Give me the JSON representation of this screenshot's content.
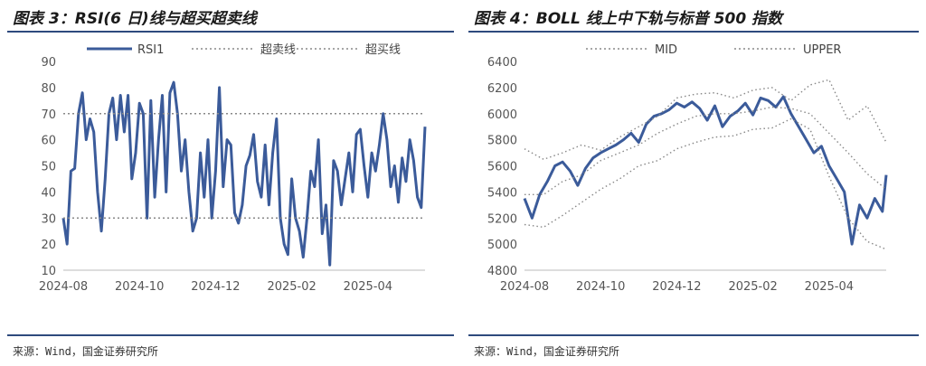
{
  "left": {
    "title": "图表 3：RSI(6 日)线与超买超卖线",
    "source": "来源：Wind，国金证券研究所"
  },
  "right": {
    "title": "图表 4：BOLL 线上中下轨与标普 500 指数",
    "source": "来源：Wind，国金证券研究所"
  },
  "colors": {
    "accent": "#2e4a7d",
    "series": "#3b5b9a",
    "dotted": "#888888",
    "axis": "#bbbbbb"
  },
  "chart_data": [
    {
      "type": "line",
      "title": "",
      "x_ticks": [
        "2024-08",
        "2024-10",
        "2024-12",
        "2025-02",
        "2025-04"
      ],
      "x_range": [
        0,
        9.5
      ],
      "ylim": [
        10,
        90
      ],
      "y_ticks": [
        10,
        20,
        30,
        40,
        50,
        60,
        70,
        80,
        90
      ],
      "legend": [
        "RSI1",
        "超卖线",
        "超买线"
      ],
      "legend_position": "top",
      "series": [
        {
          "name": "RSI1",
          "x": [
            0,
            0.1,
            0.2,
            0.3,
            0.4,
            0.5,
            0.6,
            0.7,
            0.8,
            0.9,
            1.0,
            1.1,
            1.2,
            1.3,
            1.4,
            1.5,
            1.6,
            1.7,
            1.8,
            1.9,
            2.0,
            2.1,
            2.2,
            2.3,
            2.4,
            2.5,
            2.6,
            2.7,
            2.8,
            2.9,
            3.0,
            3.1,
            3.2,
            3.3,
            3.4,
            3.5,
            3.6,
            3.7,
            3.8,
            3.9,
            4.0,
            4.1,
            4.2,
            4.3,
            4.4,
            4.5,
            4.6,
            4.7,
            4.8,
            4.9,
            5.0,
            5.1,
            5.2,
            5.3,
            5.4,
            5.5,
            5.6,
            5.7,
            5.8,
            5.9,
            6.0,
            6.1,
            6.2,
            6.3,
            6.4,
            6.5,
            6.6,
            6.7,
            6.8,
            6.9,
            7.0,
            7.1,
            7.2,
            7.3,
            7.4,
            7.5,
            7.6,
            7.7,
            7.8,
            7.9,
            8.0,
            8.1,
            8.2,
            8.3,
            8.4,
            8.5,
            8.6,
            8.7,
            8.8,
            8.9,
            9.0,
            9.1,
            9.2,
            9.3,
            9.4,
            9.5
          ],
          "y": [
            30,
            20,
            48,
            49,
            70,
            78,
            60,
            68,
            63,
            40,
            25,
            45,
            70,
            76,
            60,
            77,
            63,
            77,
            45,
            55,
            74,
            70,
            30,
            75,
            38,
            60,
            77,
            40,
            78,
            82,
            70,
            48,
            60,
            40,
            25,
            30,
            55,
            38,
            60,
            30,
            48,
            80,
            42,
            60,
            58,
            32,
            28,
            35,
            50,
            54,
            62,
            44,
            38,
            58,
            35,
            55,
            68,
            30,
            20,
            16,
            45,
            30,
            25,
            15,
            30,
            48,
            42,
            60,
            24,
            35,
            12,
            52,
            48,
            35,
            45,
            55,
            40,
            62,
            64,
            50,
            38,
            55,
            48,
            58,
            70,
            60,
            42,
            50,
            36,
            53,
            44,
            60,
            52,
            38,
            34,
            65
          ]
        },
        {
          "name": "超卖线",
          "value": 30
        },
        {
          "name": "超买线",
          "value": 70
        }
      ]
    },
    {
      "type": "line",
      "title": "",
      "x_ticks": [
        "2024-08",
        "2024-10",
        "2024-12",
        "2025-02",
        "2025-04"
      ],
      "x_range": [
        0,
        9.5
      ],
      "ylim": [
        4800,
        6400
      ],
      "y_ticks": [
        4800,
        5000,
        5200,
        5400,
        5600,
        5800,
        6000,
        6200,
        6400
      ],
      "legend": [
        "MID",
        "UPPER"
      ],
      "legend_position": "top",
      "series": [
        {
          "name": "",
          "x": [
            0,
            0.2,
            0.4,
            0.6,
            0.8,
            1.0,
            1.2,
            1.4,
            1.6,
            1.8,
            2.0,
            2.2,
            2.4,
            2.6,
            2.8,
            3.0,
            3.2,
            3.4,
            3.6,
            3.8,
            4.0,
            4.2,
            4.4,
            4.6,
            4.8,
            5.0,
            5.2,
            5.4,
            5.6,
            5.8,
            6.0,
            6.2,
            6.4,
            6.6,
            6.8,
            7.0,
            7.2,
            7.4,
            7.6,
            7.8,
            8.0,
            8.2,
            8.4,
            8.6,
            8.8,
            9.0,
            9.2,
            9.4,
            9.5
          ],
          "y": [
            5350,
            5200,
            5380,
            5480,
            5600,
            5630,
            5560,
            5450,
            5580,
            5660,
            5700,
            5730,
            5760,
            5800,
            5850,
            5780,
            5920,
            5980,
            6000,
            6030,
            6080,
            6050,
            6090,
            6040,
            5950,
            6060,
            5900,
            5980,
            6020,
            6080,
            5990,
            6120,
            6100,
            6050,
            6130,
            6000,
            5900,
            5800,
            5700,
            5750,
            5600,
            5500,
            5400,
            5000,
            5300,
            5200,
            5350,
            5250,
            5530
          ]
        },
        {
          "name": "MID",
          "x": [
            0,
            0.5,
            1.0,
            1.5,
            2.0,
            2.5,
            3.0,
            3.5,
            4.0,
            4.5,
            5.0,
            5.5,
            6.0,
            6.5,
            7.0,
            7.5,
            8.0,
            8.5,
            9.0,
            9.5
          ],
          "y": [
            5380,
            5380,
            5480,
            5530,
            5640,
            5700,
            5760,
            5850,
            5920,
            5980,
            6000,
            6000,
            6020,
            6050,
            6040,
            6000,
            5850,
            5700,
            5540,
            5420
          ]
        },
        {
          "name": "UPPER",
          "x": [
            0,
            0.5,
            1.0,
            1.5,
            2.0,
            2.5,
            3.0,
            3.5,
            4.0,
            4.5,
            5.0,
            5.5,
            6.0,
            6.5,
            7.0,
            7.5,
            8.0,
            8.5,
            9.0,
            9.5
          ],
          "y": [
            5730,
            5650,
            5700,
            5760,
            5720,
            5820,
            5900,
            5980,
            6120,
            6150,
            6160,
            6120,
            6180,
            6200,
            6100,
            6220,
            6260,
            5950,
            6060,
            5780
          ]
        },
        {
          "name": "",
          "x": [
            0,
            0.5,
            1.0,
            1.5,
            2.0,
            2.5,
            3.0,
            3.5,
            4.0,
            4.5,
            5.0,
            5.5,
            6.0,
            6.5,
            7.0,
            7.5,
            8.0,
            8.5,
            9.0,
            9.5
          ],
          "y": [
            5150,
            5130,
            5220,
            5320,
            5420,
            5500,
            5600,
            5640,
            5730,
            5780,
            5820,
            5830,
            5880,
            5890,
            5960,
            5880,
            5520,
            5200,
            5020,
            4960
          ]
        }
      ]
    }
  ]
}
